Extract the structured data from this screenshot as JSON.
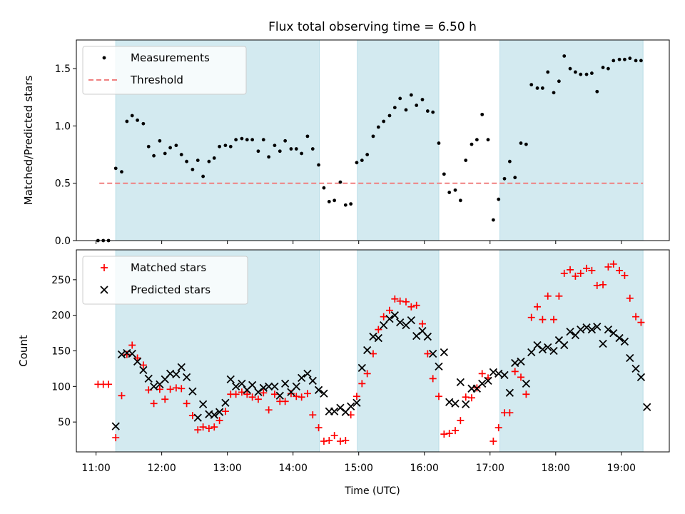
{
  "figure": {
    "title": "Flux total observing time = 6.50 h",
    "xlabel": "Time (UTC)",
    "xticks": [
      {
        "v": 11.0,
        "label": "11:00"
      },
      {
        "v": 12.0,
        "label": "12:00"
      },
      {
        "v": 13.0,
        "label": "13:00"
      },
      {
        "v": 14.0,
        "label": "14:00"
      },
      {
        "v": 15.0,
        "label": "15:00"
      },
      {
        "v": 16.0,
        "label": "16:00"
      },
      {
        "v": 17.0,
        "label": "17:00"
      },
      {
        "v": 18.0,
        "label": "18:00"
      },
      {
        "v": 19.0,
        "label": "19:00"
      }
    ],
    "xlim": [
      10.7,
      19.73
    ],
    "shaded_intervals": [
      [
        11.3,
        14.4
      ],
      [
        14.98,
        16.22
      ],
      [
        17.15,
        19.33
      ]
    ],
    "shade_color": "#d3eaf0"
  },
  "chart_data": [
    {
      "type": "scatter",
      "ylabel": "Matched/Predicted stars",
      "ylim": [
        0,
        1.75
      ],
      "yticks": [
        {
          "v": 0,
          "label": "0.0"
        },
        {
          "v": 0.5,
          "label": "0.5"
        },
        {
          "v": 1.0,
          "label": "1.0"
        },
        {
          "v": 1.5,
          "label": "1.5"
        }
      ],
      "legend": {
        "position": "upper-left",
        "entries": [
          "Measurements",
          "Threshold"
        ]
      },
      "threshold": {
        "name": "Threshold",
        "value": 0.5,
        "x_range": [
          11.05,
          19.33
        ],
        "color": "#f08080"
      },
      "series": [
        {
          "name": "Measurements",
          "color": "#000000",
          "marker": "dot",
          "x": [
            11.03,
            11.11,
            11.19,
            11.3,
            11.39,
            11.47,
            11.55,
            11.63,
            11.72,
            11.8,
            11.88,
            11.97,
            12.05,
            12.13,
            12.22,
            12.3,
            12.38,
            12.47,
            12.55,
            12.63,
            12.72,
            12.8,
            12.88,
            12.97,
            13.05,
            13.13,
            13.22,
            13.3,
            13.38,
            13.47,
            13.55,
            13.63,
            13.72,
            13.8,
            13.88,
            13.97,
            14.05,
            14.13,
            14.22,
            14.3,
            14.39,
            14.47,
            14.55,
            14.63,
            14.72,
            14.8,
            14.88,
            14.97,
            15.05,
            15.13,
            15.22,
            15.3,
            15.38,
            15.47,
            15.55,
            15.63,
            15.72,
            15.8,
            15.88,
            15.97,
            16.05,
            16.13,
            16.22,
            16.3,
            16.38,
            16.47,
            16.55,
            16.63,
            16.72,
            16.8,
            16.88,
            16.97,
            17.05,
            17.13,
            17.22,
            17.3,
            17.38,
            17.47,
            17.55,
            17.63,
            17.72,
            17.8,
            17.88,
            17.97,
            18.05,
            18.13,
            18.22,
            18.3,
            18.38,
            18.47,
            18.55,
            18.63,
            18.72,
            18.8,
            18.88,
            18.97,
            19.05,
            19.13,
            19.22,
            19.3
          ],
          "y": [
            0.0,
            0.0,
            0.0,
            0.63,
            0.6,
            1.04,
            1.09,
            1.05,
            1.02,
            0.82,
            0.74,
            0.87,
            0.76,
            0.81,
            0.83,
            0.75,
            0.69,
            0.62,
            0.7,
            0.56,
            0.69,
            0.72,
            0.82,
            0.83,
            0.82,
            0.88,
            0.89,
            0.88,
            0.88,
            0.78,
            0.88,
            0.73,
            0.83,
            0.78,
            0.87,
            0.8,
            0.8,
            0.76,
            0.91,
            0.8,
            0.66,
            0.46,
            0.34,
            0.35,
            0.51,
            0.31,
            0.32,
            0.68,
            0.7,
            0.75,
            0.91,
            0.99,
            1.04,
            1.09,
            1.16,
            1.24,
            1.14,
            1.27,
            1.18,
            1.23,
            1.13,
            1.12,
            0.85,
            0.58,
            0.42,
            0.44,
            0.35,
            0.7,
            0.84,
            0.88,
            1.1,
            0.88,
            0.18,
            0.36,
            0.54,
            0.69,
            0.55,
            0.85,
            0.84,
            1.36,
            1.33,
            1.33,
            1.47,
            1.29,
            1.39,
            1.61,
            1.5,
            1.47,
            1.45,
            1.45,
            1.46,
            1.3,
            1.51,
            1.5,
            1.57,
            1.58,
            1.58,
            1.59,
            1.57,
            1.57
          ]
        }
      ]
    },
    {
      "type": "scatter",
      "ylabel": "Count",
      "ylim": [
        8,
        292
      ],
      "yticks": [
        {
          "v": 50,
          "label": "50"
        },
        {
          "v": 100,
          "label": "100"
        },
        {
          "v": 150,
          "label": "150"
        },
        {
          "v": 200,
          "label": "200"
        },
        {
          "v": 250,
          "label": "250"
        }
      ],
      "legend": {
        "position": "upper-left",
        "entries": [
          "Matched stars",
          "Predicted stars"
        ]
      },
      "series": [
        {
          "name": "Matched stars",
          "color": "#ff0000",
          "marker": "plus",
          "x": [
            11.03,
            11.11,
            11.19,
            11.3,
            11.39,
            11.47,
            11.55,
            11.63,
            11.72,
            11.8,
            11.88,
            11.97,
            12.05,
            12.13,
            12.22,
            12.3,
            12.38,
            12.47,
            12.55,
            12.63,
            12.72,
            12.8,
            12.88,
            12.97,
            13.05,
            13.13,
            13.22,
            13.3,
            13.38,
            13.47,
            13.55,
            13.63,
            13.72,
            13.8,
            13.88,
            13.97,
            14.05,
            14.13,
            14.22,
            14.3,
            14.39,
            14.47,
            14.55,
            14.63,
            14.72,
            14.8,
            14.88,
            14.97,
            15.05,
            15.13,
            15.22,
            15.3,
            15.38,
            15.47,
            15.55,
            15.63,
            15.72,
            15.8,
            15.88,
            15.97,
            16.05,
            16.13,
            16.22,
            16.3,
            16.38,
            16.47,
            16.55,
            16.63,
            16.72,
            16.8,
            16.88,
            16.97,
            17.05,
            17.13,
            17.22,
            17.3,
            17.38,
            17.47,
            17.55,
            17.63,
            17.72,
            17.8,
            17.88,
            17.97,
            18.05,
            18.13,
            18.22,
            18.3,
            18.38,
            18.47,
            18.55,
            18.63,
            18.72,
            18.8,
            18.88,
            18.97,
            19.05,
            19.13,
            19.22,
            19.3
          ],
          "y": [
            103,
            103,
            103,
            28,
            87,
            145,
            158,
            140,
            130,
            95,
            76,
            96,
            82,
            96,
            98,
            97,
            76,
            59,
            39,
            43,
            41,
            43,
            52,
            65,
            89,
            89,
            92,
            89,
            85,
            82,
            91,
            67,
            89,
            79,
            79,
            90,
            86,
            85,
            90,
            60,
            42,
            23,
            24,
            31,
            23,
            24,
            60,
            86,
            104,
            118,
            146,
            180,
            198,
            207,
            223,
            220,
            219,
            212,
            214,
            188,
            146,
            111,
            86,
            33,
            34,
            38,
            52,
            85,
            84,
            98,
            118,
            112,
            23,
            42,
            63,
            63,
            121,
            113,
            89,
            197,
            212,
            194,
            227,
            194,
            227,
            259,
            264,
            255,
            259,
            266,
            263,
            242,
            243,
            268,
            272,
            263,
            256,
            224,
            198,
            190
          ]
        },
        {
          "name": "Predicted stars",
          "color": "#000000",
          "marker": "cross",
          "x": [
            11.3,
            11.39,
            11.47,
            11.55,
            11.63,
            11.72,
            11.8,
            11.88,
            11.97,
            12.05,
            12.13,
            12.22,
            12.3,
            12.38,
            12.47,
            12.55,
            12.63,
            12.72,
            12.8,
            12.88,
            12.97,
            13.05,
            13.13,
            13.22,
            13.3,
            13.38,
            13.47,
            13.55,
            13.63,
            13.72,
            13.8,
            13.88,
            13.97,
            14.05,
            14.13,
            14.22,
            14.3,
            14.39,
            14.47,
            14.55,
            14.63,
            14.72,
            14.8,
            14.88,
            14.97,
            15.05,
            15.13,
            15.22,
            15.3,
            15.38,
            15.47,
            15.55,
            15.63,
            15.72,
            15.8,
            15.88,
            15.97,
            16.05,
            16.13,
            16.22,
            16.3,
            16.38,
            16.47,
            16.55,
            16.63,
            16.72,
            16.8,
            16.88,
            16.97,
            17.05,
            17.13,
            17.22,
            17.3,
            17.38,
            17.47,
            17.55,
            17.63,
            17.72,
            17.8,
            17.88,
            17.97,
            18.05,
            18.13,
            18.22,
            18.3,
            18.38,
            18.47,
            18.55,
            18.63,
            18.72,
            18.8,
            18.88,
            18.97,
            19.05,
            19.13,
            19.22,
            19.3,
            19.39
          ],
          "y": [
            44,
            145,
            147,
            146,
            135,
            123,
            111,
            100,
            103,
            110,
            118,
            117,
            127,
            113,
            93,
            56,
            75,
            61,
            60,
            64,
            77,
            110,
            100,
            104,
            95,
            102,
            92,
            98,
            100,
            100,
            87,
            104,
            92,
            100,
            112,
            118,
            108,
            95,
            90,
            65,
            65,
            70,
            64,
            72,
            77,
            126,
            151,
            170,
            168,
            186,
            195,
            200,
            190,
            186,
            193,
            171,
            178,
            170,
            146,
            128,
            148,
            78,
            76,
            106,
            75,
            97,
            97,
            104,
            108,
            120,
            118,
            116,
            91,
            133,
            135,
            104,
            148,
            158,
            152,
            155,
            150,
            165,
            158,
            177,
            172,
            180,
            183,
            180,
            184,
            160,
            180,
            175,
            168,
            163,
            140,
            125,
            113,
            71
          ]
        }
      ]
    }
  ]
}
